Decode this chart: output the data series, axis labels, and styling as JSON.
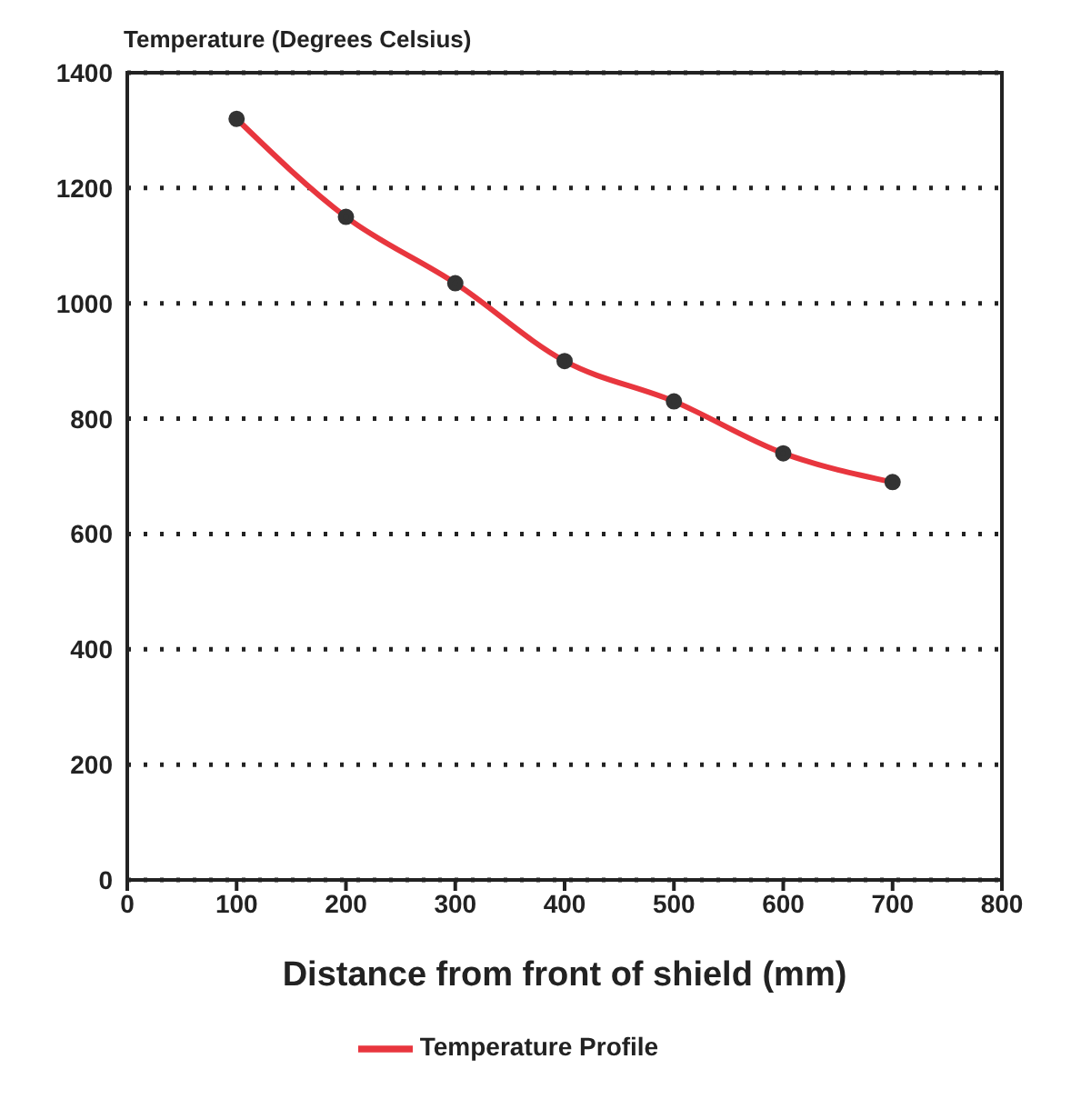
{
  "chart_data": {
    "type": "line",
    "ylabel": "Temperature (Degrees Celsius)",
    "xlabel": "Distance from front of shield (mm)",
    "x": [
      100,
      200,
      300,
      400,
      500,
      600,
      700
    ],
    "series": [
      {
        "name": "Temperature Profile",
        "color": "#e8363e",
        "values": [
          1320,
          1150,
          1035,
          900,
          830,
          740,
          690
        ]
      }
    ],
    "xlim": [
      0,
      800
    ],
    "xticks": [
      0,
      100,
      200,
      300,
      400,
      500,
      600,
      700,
      800
    ],
    "ylim": [
      0,
      1400
    ],
    "yticks": [
      0,
      200,
      400,
      600,
      800,
      1000,
      1200,
      1400
    ],
    "grid": "y",
    "legend": "bottom",
    "marker": "circle",
    "line_style": "solid"
  }
}
